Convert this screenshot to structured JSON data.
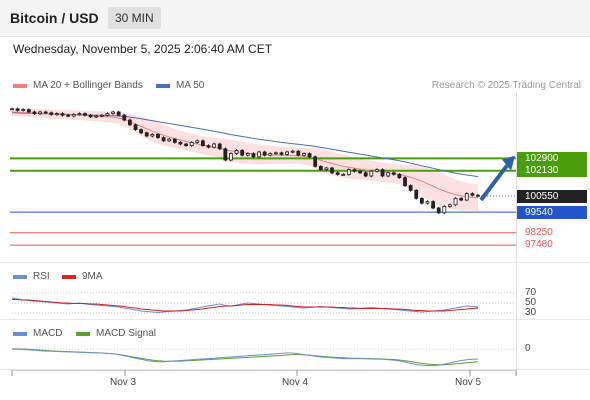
{
  "header": {
    "title": "Bitcoin / USD",
    "timeframe": "30 MIN"
  },
  "subheader": {
    "datetime": "Wednesday, November 5, 2025 2:06:40 AM CET"
  },
  "legend": {
    "ma20": "MA 20 + Bollinger Bands",
    "ma50": "MA 50",
    "rsi": "RSI",
    "rsi_ma": "9MA",
    "macd": "MACD",
    "macd_signal": "MACD Signal"
  },
  "copyright": "Research © 2025 Trading Central",
  "colors": {
    "ma20": "#f08080",
    "ma50": "#4a6fb5",
    "bands": "#fde0e0",
    "green": "#4a9e0a",
    "blue": "#2255cc",
    "red": "#ee5555",
    "dark": "#222222",
    "arrow": "#2e5fa8",
    "macd": "#6b8ed6",
    "signal": "#5aa02c"
  },
  "chart_data": [
    {
      "type": "line",
      "panel": "price",
      "x_ticks": [
        "Nov 3",
        "Nov 4",
        "Nov 5"
      ],
      "y_range": [
        96800,
        106800
      ],
      "price_levels": [
        {
          "value": 102900,
          "label": "102900",
          "style": "green-filled"
        },
        {
          "value": 102130,
          "label": "102130",
          "style": "green-filled"
        },
        {
          "value": 100550,
          "label": "100550",
          "style": "dark-filled"
        },
        {
          "value": 99540,
          "label": "99540",
          "style": "blue-filled"
        },
        {
          "value": 98250,
          "label": "98250",
          "style": "red-text"
        },
        {
          "value": 97480,
          "label": "97480",
          "style": "red-text"
        }
      ],
      "close": [
        106000,
        105900,
        105950,
        105800,
        105700,
        105800,
        105750,
        105650,
        105700,
        105600,
        105550,
        105650,
        105700,
        105600,
        105500,
        105550,
        105600,
        105700,
        105800,
        105600,
        105300,
        105000,
        104700,
        104500,
        104300,
        104400,
        104200,
        104000,
        104100,
        103900,
        103800,
        103700,
        103900,
        104000,
        103700,
        103600,
        103800,
        103500,
        102800,
        103200,
        103400,
        103100,
        103200,
        103000,
        103300,
        103100,
        103200,
        103250,
        103150,
        103300,
        103350,
        103100,
        103200,
        103000,
        102400,
        102200,
        102300,
        102000,
        101900,
        101900,
        102200,
        102100,
        102000,
        101800,
        102100,
        102200,
        101800,
        102000,
        101900,
        101700,
        101200,
        100900,
        100400,
        100100,
        100200,
        99800,
        99500,
        99900,
        100000,
        100400,
        100300,
        100700,
        100600,
        100550
      ],
      "ma20": [
        105800,
        105780,
        105770,
        105750,
        105720,
        105700,
        105690,
        105670,
        105650,
        105640,
        105620,
        105610,
        105600,
        105580,
        105560,
        105540,
        105520,
        105500,
        105480,
        105420,
        105330,
        105200,
        105050,
        104900,
        104750,
        104600,
        104470,
        104350,
        104240,
        104140,
        104050,
        103960,
        103880,
        103800,
        103730,
        103660,
        103600,
        103540,
        103420,
        103370,
        103320,
        103270,
        103220,
        103180,
        103150,
        103130,
        103120,
        103110,
        103100,
        103090,
        103080,
        103060,
        103040,
        103000,
        102900,
        102780,
        102680,
        102580,
        102490,
        102410,
        102350,
        102290,
        102230,
        102170,
        102120,
        102080,
        102030,
        101990,
        101950,
        101900,
        101820,
        101720,
        101600,
        101460,
        101320,
        101160,
        101000,
        100860,
        100740,
        100640,
        100560,
        100500,
        100470,
        100450
      ],
      "ma50": [
        105750,
        105740,
        105730,
        105720,
        105710,
        105700,
        105690,
        105680,
        105670,
        105660,
        105650,
        105640,
        105630,
        105620,
        105610,
        105600,
        105590,
        105580,
        105570,
        105550,
        105520,
        105480,
        105430,
        105380,
        105320,
        105260,
        105200,
        105140,
        105080,
        105020,
        104960,
        104900,
        104840,
        104780,
        104720,
        104660,
        104600,
        104540,
        104460,
        104390,
        104330,
        104270,
        104210,
        104150,
        104100,
        104050,
        104000,
        103950,
        103900,
        103860,
        103820,
        103780,
        103740,
        103700,
        103650,
        103590,
        103530,
        103470,
        103410,
        103350,
        103290,
        103230,
        103170,
        103110,
        103050,
        102990,
        102930,
        102870,
        102810,
        102750,
        102680,
        102600,
        102520,
        102440,
        102360,
        102280,
        102200,
        102120,
        102050,
        101980,
        101920,
        101860,
        101810,
        101760
      ],
      "bb_width": [
        250,
        250,
        260,
        260,
        270,
        270,
        280,
        280,
        290,
        290,
        300,
        300,
        300,
        310,
        320,
        330,
        340,
        350,
        360,
        380,
        420,
        480,
        540,
        600,
        640,
        660,
        660,
        650,
        630,
        600,
        580,
        560,
        560,
        560,
        570,
        580,
        600,
        630,
        700,
        700,
        690,
        680,
        660,
        640,
        620,
        600,
        580,
        560,
        540,
        520,
        500,
        500,
        520,
        560,
        620,
        680,
        720,
        740,
        740,
        730,
        710,
        690,
        670,
        650,
        630,
        610,
        600,
        600,
        600,
        620,
        680,
        760,
        840,
        920,
        980,
        1020,
        1040,
        1030,
        1000,
        960,
        920,
        880,
        850,
        820
      ]
    },
    {
      "type": "line",
      "panel": "RSI",
      "y_ticks": [
        70,
        50,
        30
      ],
      "y_range": [
        20,
        80
      ],
      "series": [
        {
          "name": "RSI",
          "values": [
            60,
            58,
            56,
            55,
            54,
            53,
            52,
            51,
            50,
            49,
            48,
            49,
            50,
            48,
            47,
            46,
            45,
            44,
            43,
            42,
            40,
            38,
            36,
            34,
            33,
            32,
            31,
            32,
            33,
            34,
            35,
            36,
            38,
            40,
            42,
            44,
            46,
            48,
            45,
            44,
            46,
            48,
            50,
            49,
            48,
            47,
            46,
            45,
            44,
            43,
            42,
            41,
            40,
            41,
            42,
            43,
            42,
            41,
            40,
            39,
            38,
            38,
            39,
            40,
            41,
            40,
            39,
            38,
            37,
            36,
            35,
            34,
            33,
            32,
            33,
            34,
            35,
            36,
            38,
            40,
            42,
            44,
            43,
            42
          ]
        },
        {
          "name": "9MA",
          "values": [
            57,
            57,
            56,
            56,
            55,
            54,
            53,
            52,
            51,
            50,
            50,
            49,
            49,
            49,
            48,
            48,
            47,
            46,
            45,
            44,
            43,
            41,
            40,
            38,
            37,
            36,
            35,
            34,
            34,
            34,
            34,
            35,
            36,
            37,
            38,
            40,
            41,
            43,
            44,
            44,
            45,
            46,
            47,
            47,
            47,
            47,
            47,
            46,
            46,
            45,
            44,
            43,
            42,
            42,
            42,
            42,
            42,
            42,
            41,
            41,
            40,
            40,
            39,
            39,
            39,
            39,
            39,
            39,
            38,
            38,
            37,
            36,
            35,
            35,
            34,
            34,
            34,
            34,
            35,
            36,
            37,
            38,
            39,
            40
          ]
        }
      ]
    },
    {
      "type": "line",
      "panel": "MACD",
      "y_ticks": [
        0
      ],
      "y_range": [
        -480,
        130
      ],
      "series": [
        {
          "name": "MACD",
          "values": [
            0,
            -5,
            -10,
            -20,
            -30,
            -40,
            -50,
            -55,
            -60,
            -65,
            -70,
            -75,
            -80,
            -85,
            -90,
            -95,
            -100,
            -110,
            -120,
            -140,
            -170,
            -200,
            -230,
            -260,
            -290,
            -310,
            -320,
            -320,
            -310,
            -300,
            -290,
            -280,
            -270,
            -260,
            -250,
            -240,
            -230,
            -220,
            -210,
            -200,
            -190,
            -180,
            -170,
            -160,
            -150,
            -140,
            -130,
            -120,
            -110,
            -100,
            -100,
            -120,
            -140,
            -160,
            -180,
            -200,
            -210,
            -220,
            -230,
            -240,
            -240,
            -240,
            -240,
            -245,
            -250,
            -255,
            -260,
            -270,
            -280,
            -300,
            -330,
            -360,
            -390,
            -410,
            -420,
            -420,
            -410,
            -380,
            -350,
            -320,
            -290,
            -270,
            -260,
            -250
          ]
        },
        {
          "name": "MACD Signal",
          "values": [
            10,
            5,
            0,
            -5,
            -15,
            -25,
            -35,
            -45,
            -52,
            -58,
            -64,
            -70,
            -76,
            -82,
            -88,
            -94,
            -100,
            -108,
            -118,
            -135,
            -160,
            -185,
            -210,
            -235,
            -260,
            -280,
            -295,
            -305,
            -310,
            -310,
            -305,
            -298,
            -290,
            -282,
            -274,
            -266,
            -258,
            -250,
            -242,
            -234,
            -226,
            -218,
            -210,
            -202,
            -194,
            -186,
            -178,
            -170,
            -162,
            -150,
            -140,
            -140,
            -145,
            -155,
            -168,
            -180,
            -192,
            -202,
            -212,
            -222,
            -228,
            -232,
            -235,
            -238,
            -242,
            -246,
            -250,
            -256,
            -264,
            -276,
            -294,
            -316,
            -340,
            -362,
            -380,
            -392,
            -398,
            -396,
            -388,
            -376,
            -362,
            -346,
            -332,
            -320
          ]
        }
      ]
    }
  ]
}
